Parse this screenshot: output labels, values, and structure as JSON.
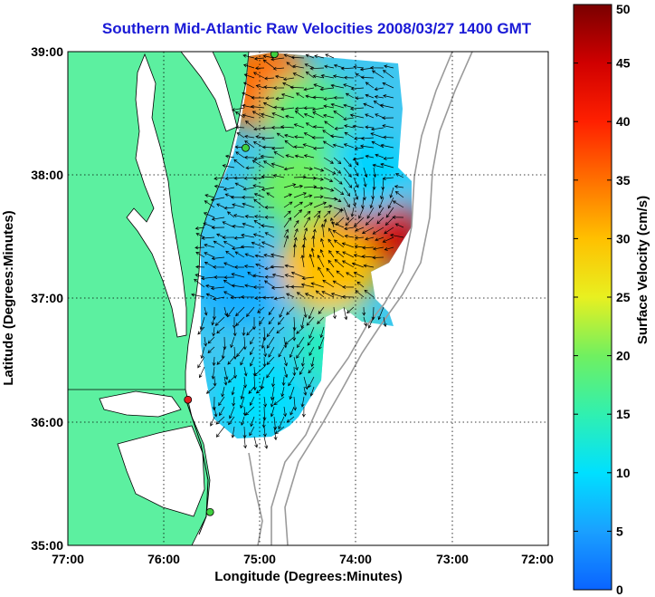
{
  "title": "Southern Mid-Atlantic Raw Velocities 2008/03/27 1400 GMT",
  "x_axis": {
    "label": "Longitude (Degrees:Minutes)",
    "ticks": [
      "77:00",
      "76:00",
      "75:00",
      "74:00",
      "73:00",
      "72:00"
    ]
  },
  "y_axis": {
    "label": "Latitude (Degrees:Minutes)",
    "ticks": [
      "39:00",
      "38:00",
      "37:00",
      "36:00",
      "35:00"
    ]
  },
  "colorbar": {
    "label": "Surface Velocity (cm/s)",
    "ticks": [
      "50",
      "45",
      "40",
      "35",
      "30",
      "25",
      "20",
      "15",
      "10",
      "5",
      "0"
    ],
    "min": 0,
    "max": 50
  },
  "grid": "dotted",
  "colors": {
    "land": "#5cf0a0",
    "ocean": "#ffffff",
    "title": "#1a1ad6",
    "bathymetry": "#9a9a9a",
    "station_active": "#40d040",
    "station_flagged": "#e02020"
  },
  "map_extent": {
    "lon_west": -77,
    "lon_east": -72,
    "lat_south": 35,
    "lat_north": 39
  },
  "stations": [
    {
      "status": "active",
      "lon": -74.85,
      "lat": 38.98
    },
    {
      "status": "active",
      "lon": -75.15,
      "lat": 38.22
    },
    {
      "status": "flagged",
      "lon": -75.75,
      "lat": 36.18
    },
    {
      "status": "active",
      "lon": -75.52,
      "lat": 35.27
    }
  ],
  "velocity_field": {
    "units": "cm/s",
    "blobs": [
      {
        "lon": -73.85,
        "lat": 37.55,
        "speed": 45
      },
      {
        "lon": -74.3,
        "lat": 37.25,
        "speed": 30
      },
      {
        "lon": -74.95,
        "lat": 38.72,
        "speed": 35
      },
      {
        "lon": -75.2,
        "lat": 37.1,
        "speed": 6
      },
      {
        "lon": -75.0,
        "lat": 36.2,
        "speed": 10
      },
      {
        "lon": -74.2,
        "lat": 36.6,
        "speed": 14
      },
      {
        "lon": -74.5,
        "lat": 38.5,
        "speed": 18
      },
      {
        "lon": -73.9,
        "lat": 38.0,
        "speed": 9
      },
      {
        "lon": -74.6,
        "lat": 37.9,
        "speed": 20
      }
    ]
  }
}
